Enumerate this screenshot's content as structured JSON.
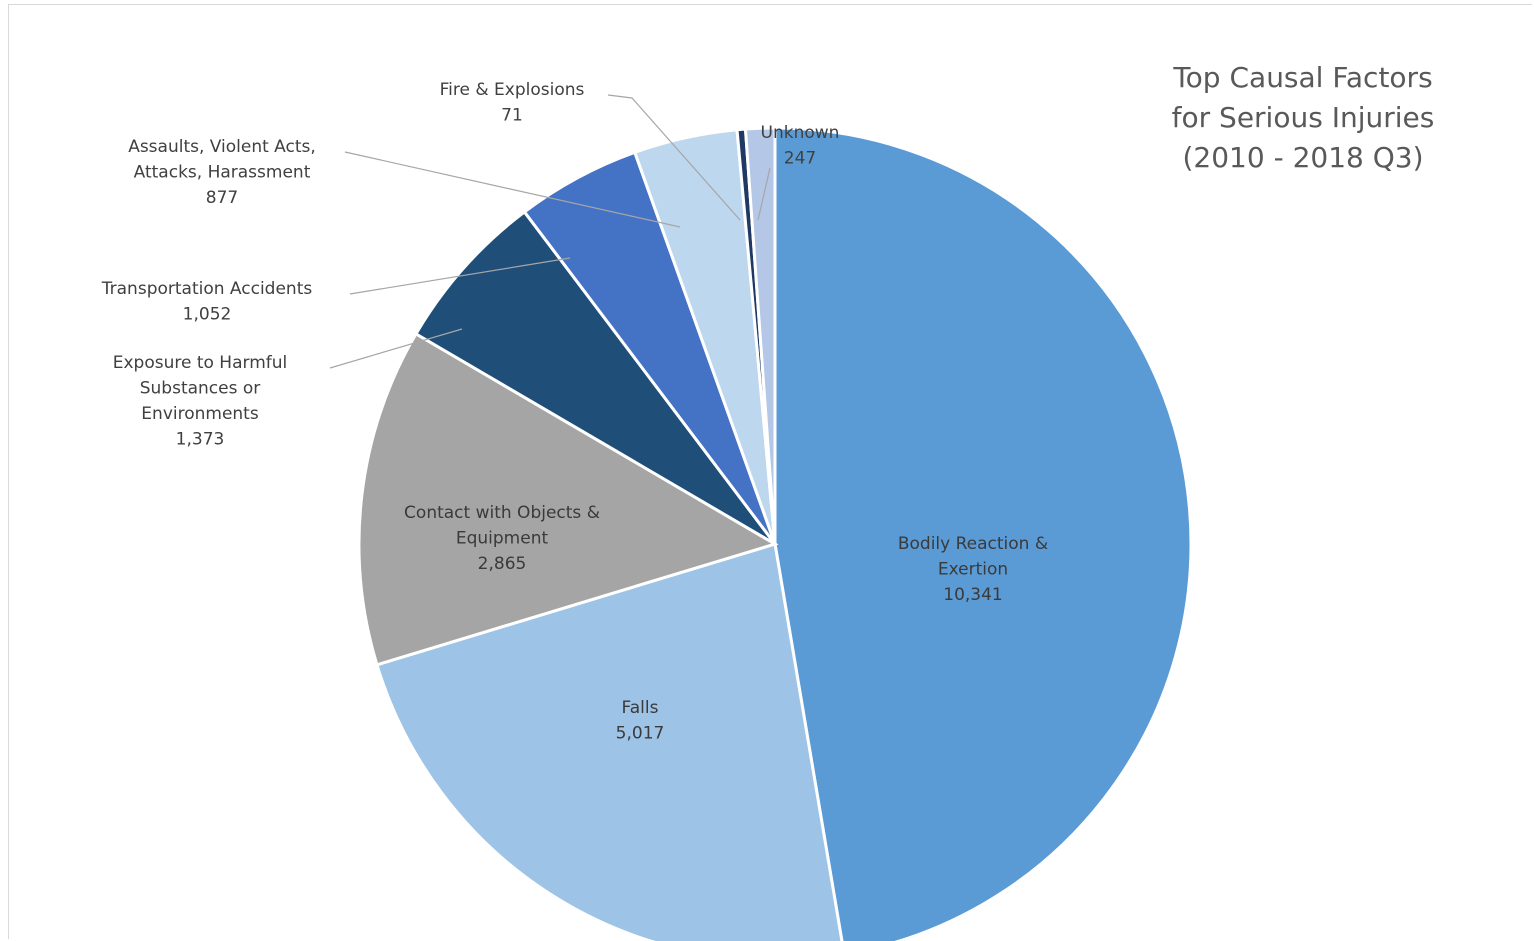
{
  "chart_data": {
    "type": "pie",
    "title": [
      "Top Causal Factors",
      "for Serious Injuries",
      "(2010 - 2018 Q3)"
    ],
    "slices": [
      {
        "label": [
          "Bodily Reaction &",
          "Exertion"
        ],
        "value": 10341,
        "value_label": "10,341",
        "color": "#5b9bd5"
      },
      {
        "label": [
          "Falls"
        ],
        "value": 5017,
        "value_label": "5,017",
        "color": "#9dc3e6"
      },
      {
        "label": [
          "Contact with Objects &",
          "Equipment"
        ],
        "value": 2865,
        "value_label": "2,865",
        "color": "#a5a5a5"
      },
      {
        "label": [
          "Exposure to Harmful",
          "Substances or",
          "Environments"
        ],
        "value": 1373,
        "value_label": "1,373",
        "color": "#1f4e79"
      },
      {
        "label": [
          "Transportation Accidents"
        ],
        "value": 1052,
        "value_label": "1,052",
        "color": "#4472c4"
      },
      {
        "label": [
          "Assaults, Violent Acts,",
          "Attacks, Harassment"
        ],
        "value": 877,
        "value_label": "877",
        "color": "#bdd7ee"
      },
      {
        "label": [
          "Fire & Explosions"
        ],
        "value": 71,
        "value_label": "71",
        "color": "#203864"
      },
      {
        "label": [
          "Unknown"
        ],
        "value": 247,
        "value_label": "247",
        "color": "#b4c7e7"
      }
    ]
  }
}
